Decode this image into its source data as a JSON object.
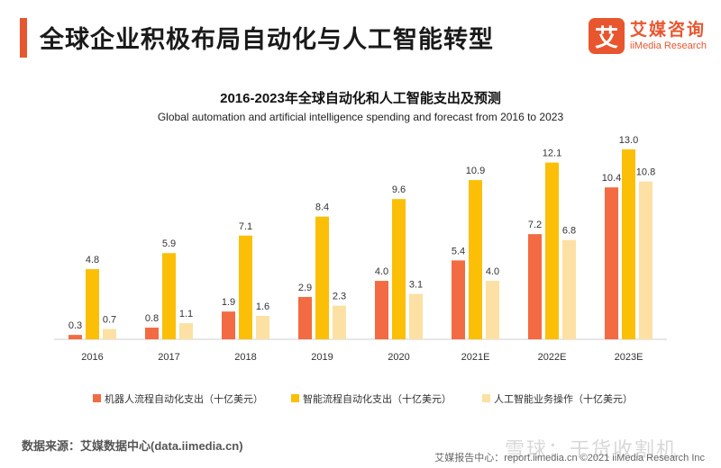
{
  "header": {
    "title": "全球企业积极布局自动化与人工智能转型"
  },
  "logo": {
    "mark": "艾",
    "name_cn": "艾媒咨询",
    "name_en": "iiMedia Research"
  },
  "chart_data": {
    "type": "bar",
    "title": "2016-2023年全球自动化和人工智能支出及预测",
    "subtitle": "Global automation and artificial intelligence spending and forecast from 2016 to 2023",
    "categories": [
      "2016",
      "2017",
      "2018",
      "2019",
      "2020",
      "2021E",
      "2022E",
      "2023E"
    ],
    "series": [
      {
        "name": "机器人流程自动化支出（十亿美元）",
        "color": "#f26b43",
        "values": [
          0.3,
          0.8,
          1.9,
          2.9,
          4.0,
          5.4,
          7.2,
          10.4
        ]
      },
      {
        "name": "智能流程自动化支出（十亿美元）",
        "color": "#fcbf07",
        "values": [
          4.8,
          5.9,
          7.1,
          8.4,
          9.6,
          10.9,
          12.1,
          13.0
        ]
      },
      {
        "name": "人工智能业务操作（十亿美元）",
        "color": "#fde0a3",
        "values": [
          0.7,
          1.1,
          1.6,
          2.3,
          3.1,
          4.0,
          6.8,
          10.8
        ]
      }
    ],
    "ylim": [
      0,
      13
    ],
    "grid": false,
    "legend_position": "bottom"
  },
  "footer": {
    "source": "数据来源：艾媒数据中心(data.iimedia.cn)",
    "right_text": "艾媒报告中心：report.iimedia.cn  ©2021  iiMedia Research  Inc",
    "watermark": "雪球：干货收割机"
  }
}
